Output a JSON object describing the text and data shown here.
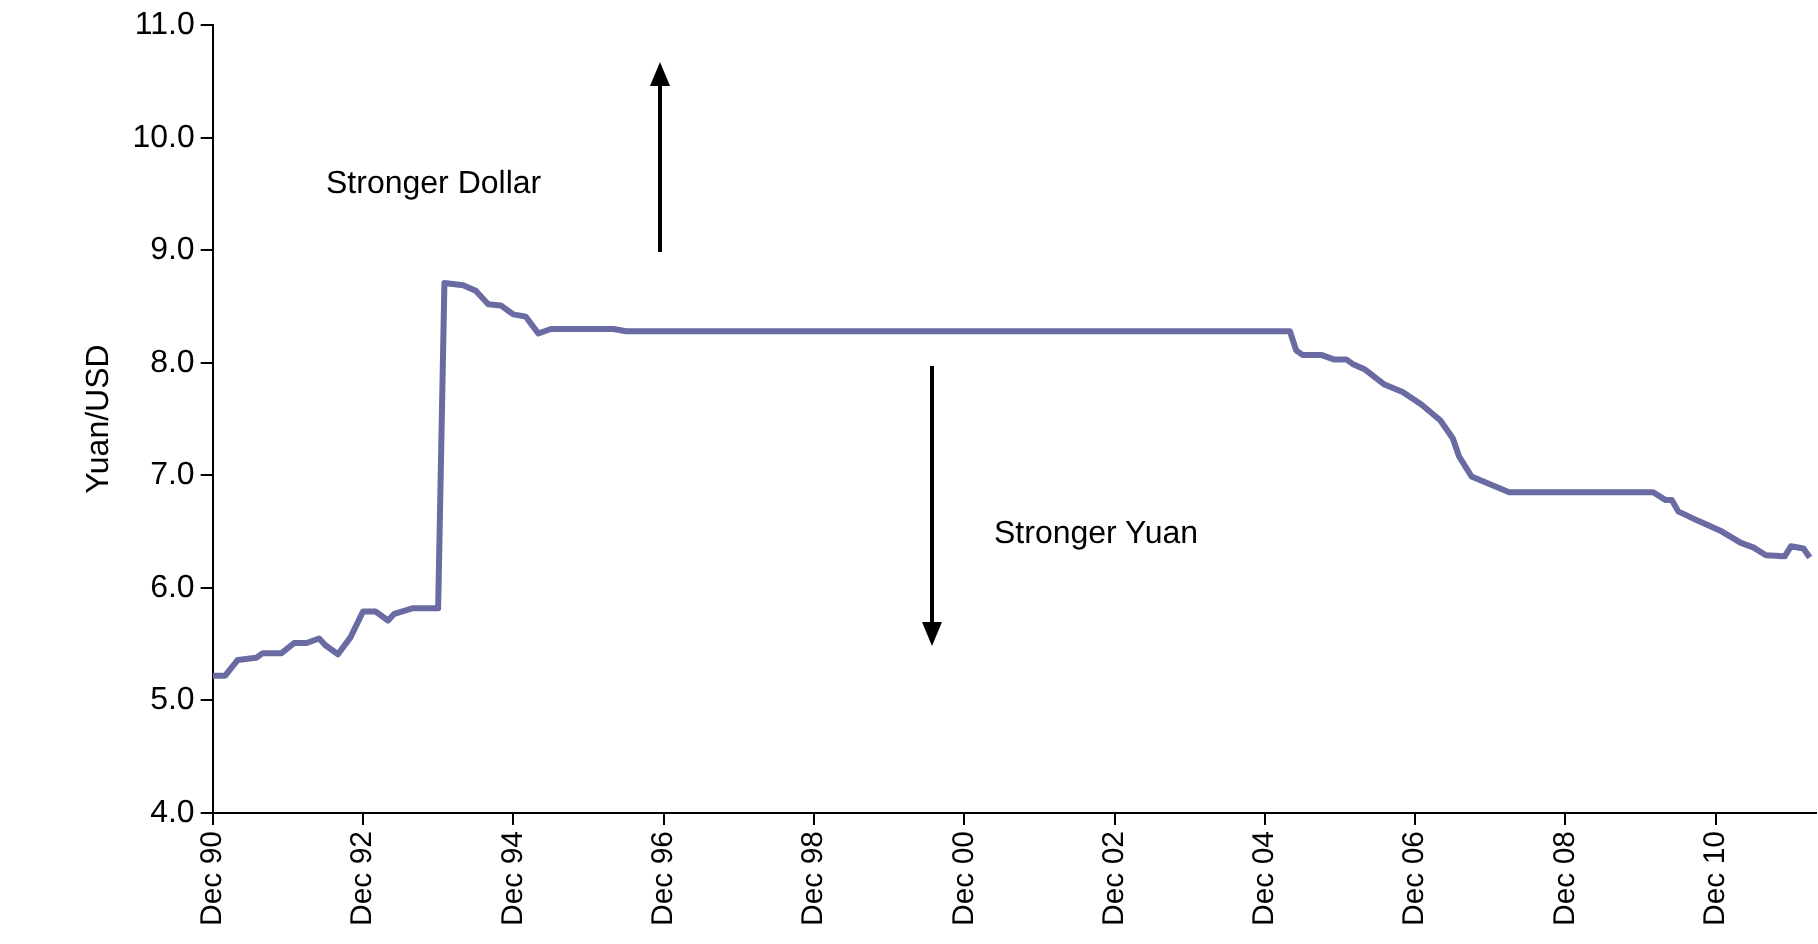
{
  "chart_data": {
    "type": "line",
    "ylabel": "Yuan/USD",
    "x": [
      "1990-12",
      "1991-02",
      "1991-04",
      "1991-07",
      "1991-08",
      "1991-11",
      "1992-01",
      "1992-03",
      "1992-05",
      "1992-06",
      "1992-08",
      "1992-10",
      "1992-12",
      "1993-02",
      "1993-04",
      "1993-05",
      "1993-08",
      "1993-12",
      "1994-01",
      "1994-04",
      "1994-06",
      "1994-08",
      "1994-10",
      "1994-12",
      "1995-02",
      "1995-04",
      "1995-06",
      "1996-04",
      "1996-06",
      "2005-04",
      "2005-05",
      "2005-06",
      "2005-09",
      "2005-11",
      "2006-01",
      "2006-02",
      "2006-04",
      "2006-07",
      "2006-10",
      "2007-01",
      "2007-04",
      "2007-06",
      "2007-07",
      "2007-08",
      "2007-09",
      "2008-03",
      "2010-02",
      "2010-04",
      "2010-05",
      "2010-06",
      "2010-09",
      "2011-01",
      "2011-04",
      "2011-06",
      "2011-08",
      "2011-11",
      "2011-12",
      "2012-02",
      "2012-03"
    ],
    "series": [
      {
        "color": "#6a6ba3",
        "values": [
          5.22,
          5.22,
          5.36,
          5.38,
          5.42,
          5.42,
          5.51,
          5.51,
          5.55,
          5.49,
          5.41,
          5.56,
          5.79,
          5.79,
          5.71,
          5.77,
          5.82,
          5.82,
          8.71,
          8.69,
          8.64,
          8.52,
          8.51,
          8.43,
          8.41,
          8.26,
          8.3,
          8.3,
          8.28,
          8.28,
          8.11,
          8.07,
          8.07,
          8.03,
          8.03,
          7.99,
          7.94,
          7.81,
          7.74,
          7.63,
          7.49,
          7.33,
          7.17,
          7.08,
          6.99,
          6.85,
          6.85,
          6.78,
          6.78,
          6.68,
          6.6,
          6.5,
          6.4,
          6.36,
          6.29,
          6.28,
          6.37,
          6.35,
          6.27
        ]
      }
    ],
    "xlim": [
      "1990-12",
      "2012-04"
    ],
    "xticks": [
      {
        "value": "1990-12",
        "label": "Dec 90"
      },
      {
        "value": "1992-12",
        "label": "Dec 92"
      },
      {
        "value": "1994-12",
        "label": "Dec 94"
      },
      {
        "value": "1996-12",
        "label": "Dec 96"
      },
      {
        "value": "1998-12",
        "label": "Dec 98"
      },
      {
        "value": "2000-12",
        "label": "Dec 00"
      },
      {
        "value": "2002-12",
        "label": "Dec 02"
      },
      {
        "value": "2004-12",
        "label": "Dec 04"
      },
      {
        "value": "2006-12",
        "label": "Dec 06"
      },
      {
        "value": "2008-12",
        "label": "Dec 08"
      },
      {
        "value": "2010-12",
        "label": "Dec 10"
      }
    ],
    "ylim": [
      4,
      11
    ],
    "yticks": [
      {
        "value": 4,
        "label": "4.0"
      },
      {
        "value": 5,
        "label": "5.0"
      },
      {
        "value": 6,
        "label": "6.0"
      },
      {
        "value": 7,
        "label": "7.0"
      },
      {
        "value": 8,
        "label": "8.0"
      },
      {
        "value": 9,
        "label": "9.0"
      },
      {
        "value": 10,
        "label": "10.0"
      },
      {
        "value": 11,
        "label": "11.0"
      }
    ],
    "annotations": [
      "Stronger Dollar",
      "Stronger Yuan"
    ],
    "grid": false,
    "legend": false,
    "marker": "none",
    "line_style": "solid"
  }
}
